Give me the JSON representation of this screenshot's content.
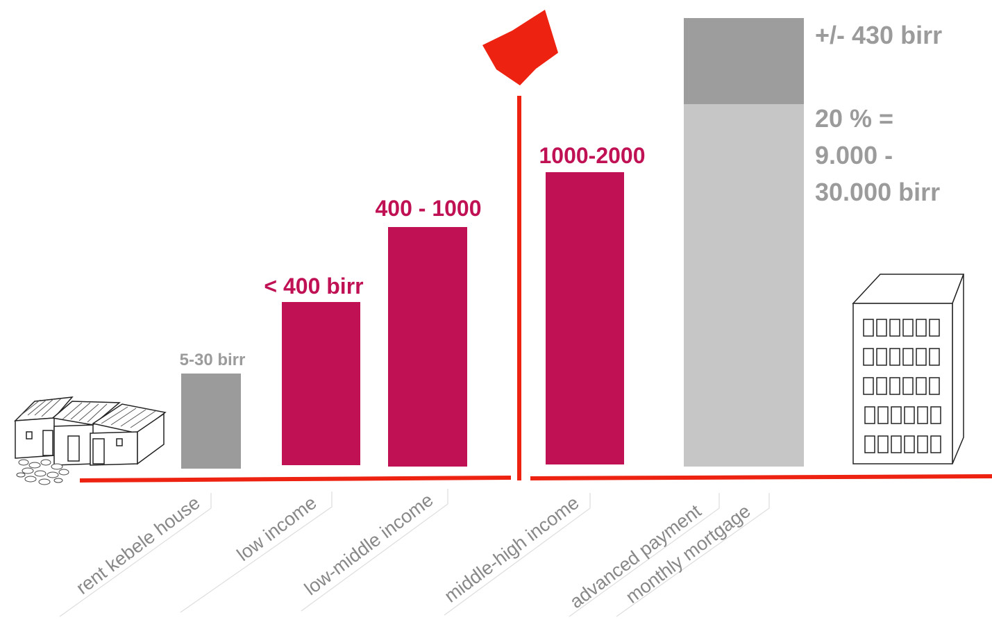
{
  "chart_data": {
    "type": "bar",
    "categories": [
      "rent kebele house",
      "low  income",
      "low-middle income",
      "middle-high income",
      "advanced payment",
      "monthly mortgage"
    ],
    "bars": [
      {
        "label": "5-30 birr",
        "value": 30,
        "color": "#9b9b9b",
        "label_color": "#9b9b9b"
      },
      {
        "label": "< 400 birr",
        "value": 400,
        "color": "#c01155",
        "label_color": "#c01155"
      },
      {
        "label": "400 - 1000",
        "value": 1000,
        "color": "#c01155",
        "label_color": "#c01155"
      },
      {
        "label": "1000-2000",
        "value": 2000,
        "color": "#c01155",
        "label_color": "#c01155"
      }
    ],
    "stacked_bar": {
      "segments": [
        {
          "name": "advanced payment",
          "lines": [
            "20 % =",
            "9.000 -",
            "30.000 birr"
          ],
          "color": "#c6c6c6"
        },
        {
          "name": "monthly mortgage",
          "lines": [
            "+/- 430 birr"
          ],
          "color": "#9d9d9d"
        }
      ]
    },
    "colors": {
      "accent": "#ee2211",
      "bar": "#c01155",
      "gray": "#9b9b9b",
      "light_gray": "#c6c6c6",
      "axis_text": "#888888"
    }
  }
}
